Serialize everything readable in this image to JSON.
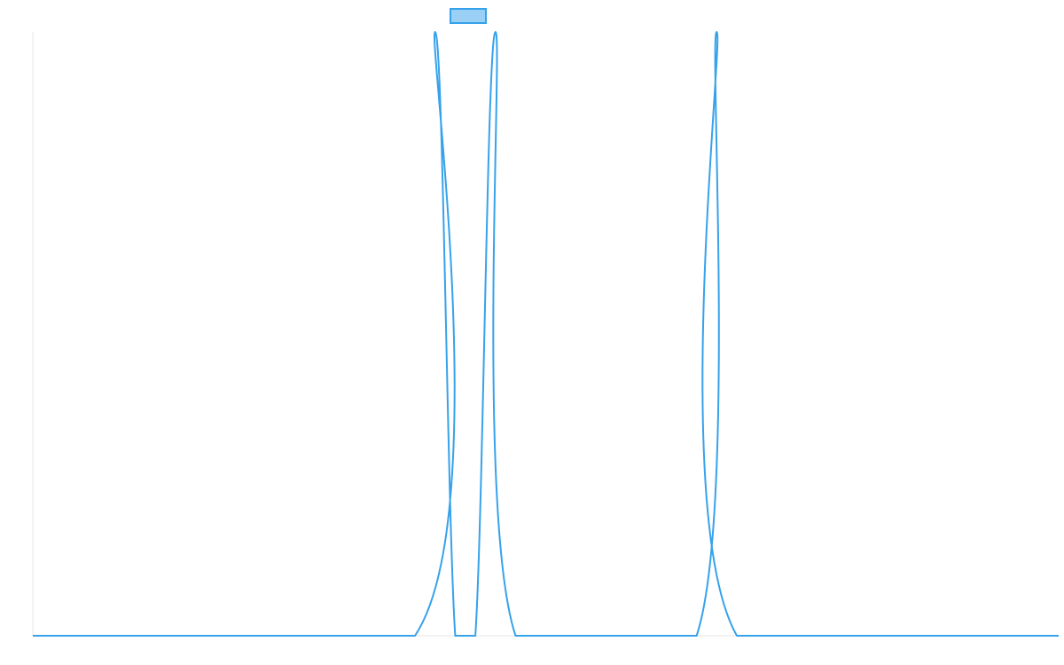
{
  "chart_data": {
    "type": "line",
    "title": "",
    "xlabel": "",
    "ylabel": "",
    "xlim": [
      0,
      51
    ],
    "ylim": [
      0,
      1
    ],
    "grid": false,
    "legend": "top-center",
    "series": [
      {
        "name": "",
        "color": "#36a2eb",
        "fill_color": "#9ad0f5",
        "points": [
          {
            "x": 0,
            "y": 0
          },
          {
            "x": 19,
            "y": 0
          },
          {
            "x": 20,
            "y": 1
          },
          {
            "x": 21,
            "y": 0
          },
          {
            "x": 22,
            "y": 0
          },
          {
            "x": 23,
            "y": 1
          },
          {
            "x": 24,
            "y": 0
          },
          {
            "x": 33,
            "y": 0
          },
          {
            "x": 34,
            "y": 1
          },
          {
            "x": 35,
            "y": 0
          },
          {
            "x": 51,
            "y": 0
          }
        ]
      }
    ]
  }
}
